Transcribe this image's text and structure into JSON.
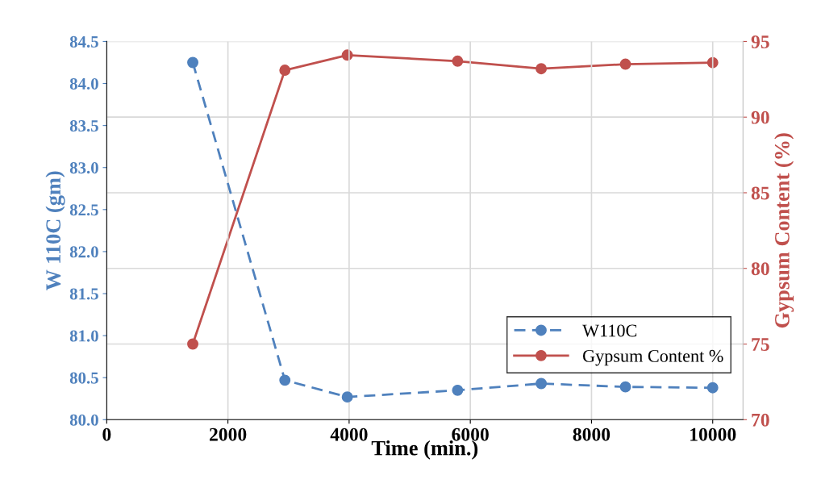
{
  "chart_data": {
    "type": "line",
    "xlabel": "Time (min.)",
    "ylabel": "W 110C (gm)",
    "y2label": "Gypsum Content (%)",
    "x": [
      1420,
      2940,
      3970,
      5790,
      7170,
      8560,
      10000
    ],
    "series": [
      {
        "name": "W110C",
        "color": "#4f81bd",
        "values": [
          84.25,
          80.47,
          80.27,
          80.35,
          80.43,
          80.39,
          80.38
        ],
        "line_style": "dashed"
      },
      {
        "name": "Gypsum Content %",
        "color": "#c0504d",
        "values": [
          75.0,
          93.1,
          94.1,
          93.7,
          93.2,
          93.5,
          93.6
        ],
        "axis": "y2",
        "line_style": "solid"
      }
    ],
    "xlim": [
      0,
      10500
    ],
    "xticks": [
      0,
      2000,
      4000,
      6000,
      8000,
      10000
    ],
    "ylim": [
      80.0,
      84.5
    ],
    "yticks": [
      {
        "value": 80.0,
        "label": "80.0"
      },
      {
        "value": 80.5,
        "label": "80.5"
      },
      {
        "value": 81.0,
        "label": "81.0"
      },
      {
        "value": 81.5,
        "label": "81.5"
      },
      {
        "value": 82.0,
        "label": "82.0"
      },
      {
        "value": 82.5,
        "label": "82.5"
      },
      {
        "value": 83.0,
        "label": "83.0"
      },
      {
        "value": 83.5,
        "label": "83.5"
      },
      {
        "value": 84.0,
        "label": "84.0"
      },
      {
        "value": 84.5,
        "label": "84.5"
      }
    ],
    "y2lim": [
      70,
      95
    ],
    "y2ticks": [
      70,
      75,
      80,
      85,
      90,
      95
    ],
    "grid": true,
    "legend": "bottom right",
    "marker": "circle"
  }
}
